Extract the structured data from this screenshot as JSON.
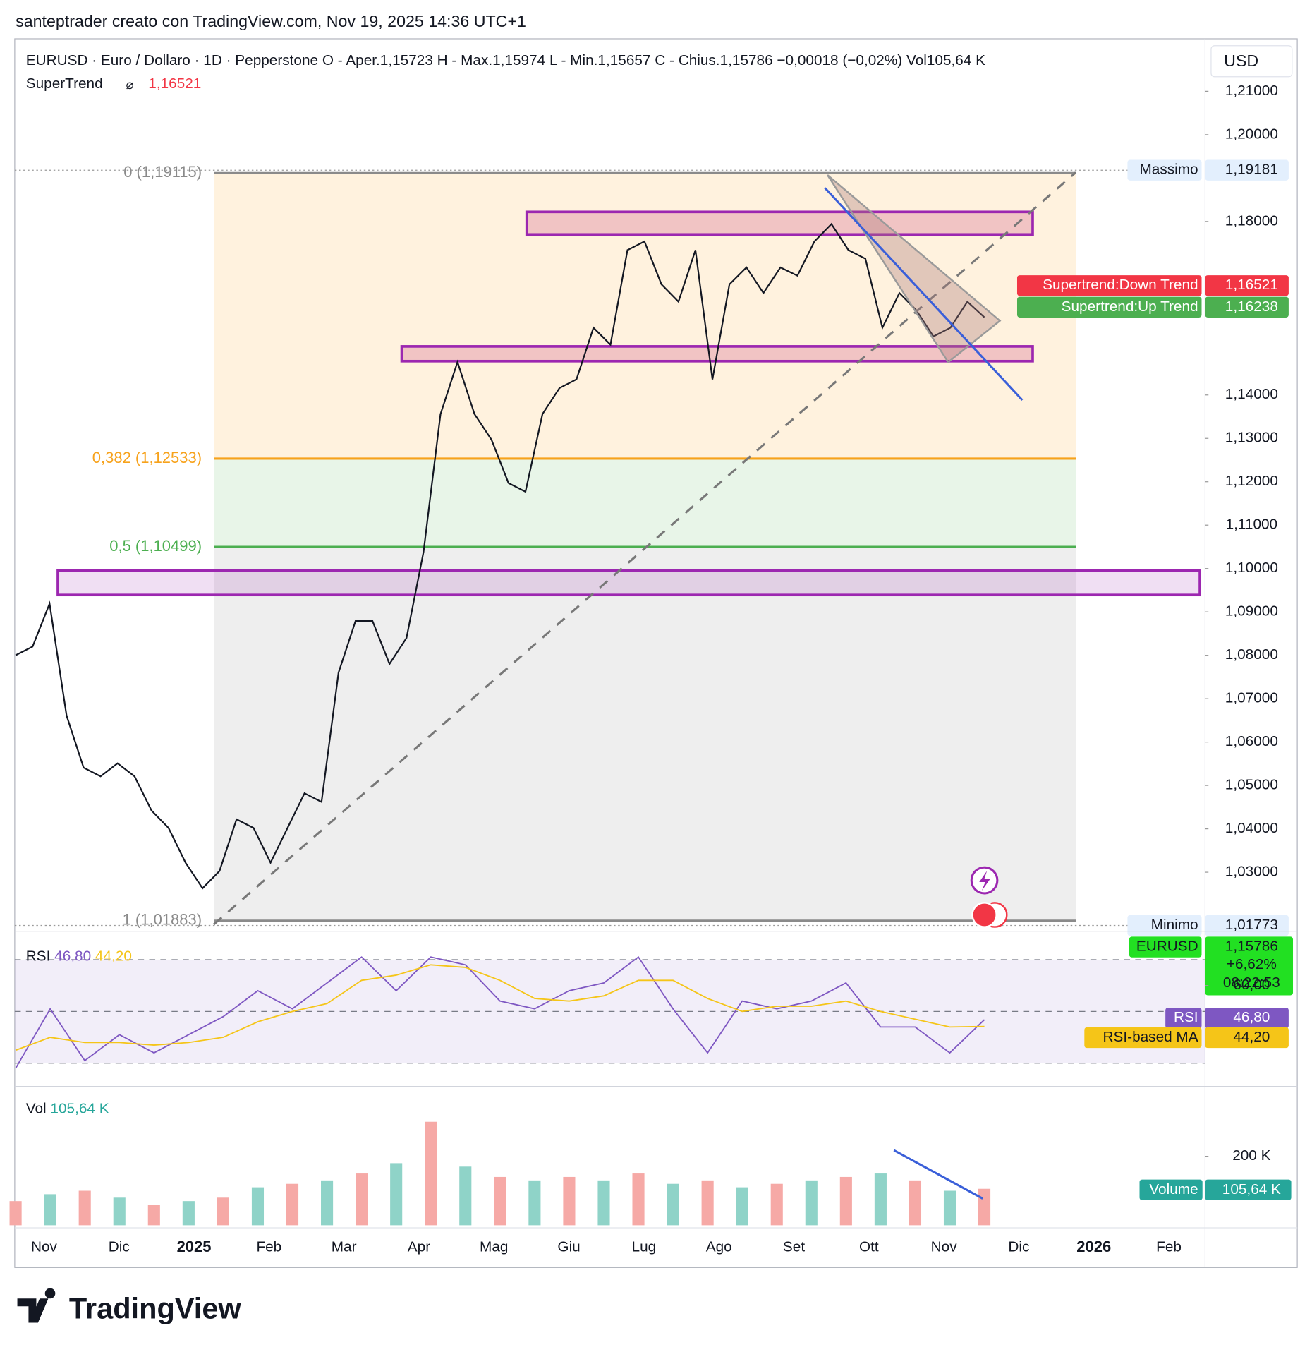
{
  "header": {
    "text": "santeptrader creato con TradingView.com, Nov 19, 2025 14:36 UTC+1",
    "brand": "TradingView"
  },
  "chart_data": [
    {
      "type": "line",
      "symbol": "EURUSD · Euro / Dollaro · 1D · Pepperstone",
      "ohlc": [
        "O - Aper.1,15723",
        "H - Max.1,15974",
        "L - Min.1,15657",
        "C - Chius.1,15786",
        "−0,00018 (−0,02%)",
        "Vol105,64 K"
      ],
      "indicator": {
        "name": "SuperTrend",
        "value_label": "1,16521"
      },
      "currency": "USD",
      "ylim": [
        1.0164,
        1.2221
      ],
      "yticks": [
        {
          "value": 1.21,
          "label": "1,21000"
        },
        {
          "value": 1.2,
          "label": "1,20000"
        },
        {
          "value": 1.18,
          "label": "1,18000"
        },
        {
          "value": 1.14,
          "label": "1,14000"
        },
        {
          "value": 1.13,
          "label": "1,13000"
        },
        {
          "value": 1.12,
          "label": "1,12000"
        },
        {
          "value": 1.11,
          "label": "1,11000"
        },
        {
          "value": 1.1,
          "label": "1,10000"
        },
        {
          "value": 1.09,
          "label": "1,09000"
        },
        {
          "value": 1.08,
          "label": "1,08000"
        },
        {
          "value": 1.07,
          "label": "1,07000"
        },
        {
          "value": 1.06,
          "label": "1,06000"
        },
        {
          "value": 1.05,
          "label": "1,05000"
        },
        {
          "value": 1.04,
          "label": "1,04000"
        },
        {
          "value": 1.03,
          "label": "1,03000"
        }
      ],
      "series": [
        {
          "name": "EURUSD",
          "color": "#131722",
          "values": [
            1.08,
            1.082,
            1.0919,
            1.0661,
            1.0541,
            1.0521,
            1.0551,
            1.0521,
            1.0442,
            1.0402,
            1.0322,
            1.0263,
            1.0303,
            1.0422,
            1.0402,
            1.0322,
            1.0402,
            1.0482,
            1.0462,
            1.076,
            1.0879,
            1.0879,
            1.078,
            1.084,
            1.1038,
            1.1356,
            1.1476,
            1.1356,
            1.1297,
            1.1197,
            1.1177,
            1.1356,
            1.1416,
            1.1436,
            1.1555,
            1.1516,
            1.1734,
            1.1754,
            1.1655,
            1.1615,
            1.1734,
            1.1436,
            1.1655,
            1.1694,
            1.1635,
            1.1694,
            1.1675,
            1.1754,
            1.1794,
            1.1734,
            1.1714,
            1.1555,
            1.1635,
            1.1595,
            1.1535,
            1.1555,
            1.1615,
            1.1579
          ]
        }
      ],
      "fib_levels": [
        {
          "label": "0 (1,19115)",
          "value": 1.19115,
          "color": "#8a8a8a"
        },
        {
          "label": "0,382 (1,12533)",
          "value": 1.12533,
          "color": "#f7a21b"
        },
        {
          "label": "0,5 (1,10499)",
          "value": 1.10499,
          "color": "#4caf50"
        },
        {
          "label": "1 (1,01883)",
          "value": 1.01883,
          "color": "#8a8a8a"
        }
      ],
      "zones": [
        {
          "low": 1.177,
          "high": 1.1822
        },
        {
          "low": 1.1478,
          "high": 1.1512
        },
        {
          "low": 1.0939,
          "high": 1.0995
        }
      ],
      "price_tags": [
        {
          "name": "Massimo",
          "value": 1.19181,
          "label": "1,19181",
          "color": "#e3effd"
        },
        {
          "name": "Supertrend:Down Trend",
          "value": 1.16521,
          "label": "1,16521",
          "color": "#f23645"
        },
        {
          "name": "Supertrend:Up Trend",
          "value": 1.16238,
          "label": "1,16238",
          "color": "#4caf50"
        },
        {
          "name": "Minimo",
          "value": 1.01773,
          "label": "1,01773",
          "color": "#e3effd"
        }
      ],
      "last": {
        "name": "EURUSD",
        "value": 1.15786,
        "label": "1,15786",
        "change": "+6,62%",
        "countdown": "08:22:53",
        "color": "#22e022"
      },
      "xticks": [
        "Nov",
        "Dic",
        "2025",
        "Feb",
        "Mar",
        "Apr",
        "Mag",
        "Giu",
        "Lug",
        "Ago",
        "Set",
        "Ott",
        "Nov",
        "Dic",
        "2026",
        "Feb"
      ]
    },
    {
      "type": "line",
      "title": "RSI",
      "ylim": [
        21.7,
        80.3
      ],
      "yticks": [
        {
          "value": 60,
          "label": "60,00"
        }
      ],
      "bands": [
        70,
        50,
        30
      ],
      "series": [
        {
          "name": "RSI",
          "color": "#7e57c2",
          "value_label": "46,80",
          "values": [
            28,
            51,
            31,
            41,
            34,
            41,
            48,
            58,
            51,
            61,
            71,
            58,
            71,
            68,
            54,
            51,
            58,
            61,
            71,
            51,
            34,
            54,
            51,
            54,
            61,
            44,
            44,
            34,
            46.8
          ]
        },
        {
          "name": "RSI-based MA",
          "color": "#f5c518",
          "value_label": "44,20",
          "values": [
            35,
            40,
            38,
            38,
            37,
            38,
            40,
            46,
            50,
            53,
            62,
            64,
            68,
            67,
            62,
            55,
            54,
            56,
            62,
            62,
            55,
            50,
            52,
            52,
            54,
            50,
            47,
            44,
            44.2
          ]
        }
      ]
    },
    {
      "type": "bar",
      "title": "Vol",
      "name": "Volume",
      "value_label": "105,64 K",
      "color": "#26a69a",
      "bar_colors": [
        "#f6a9a6",
        "#8fd3c8"
      ],
      "ylim": [
        -7500,
        397500
      ],
      "yticks": [
        {
          "value": 200000,
          "label": "200 K"
        }
      ],
      "values": [
        70000,
        90000,
        100000,
        80000,
        60000,
        70000,
        80000,
        110000,
        120000,
        130000,
        150000,
        180000,
        300000,
        170000,
        140000,
        130000,
        140000,
        130000,
        150000,
        120000,
        130000,
        110000,
        120000,
        130000,
        140000,
        150000,
        130000,
        100000,
        105640
      ]
    }
  ]
}
